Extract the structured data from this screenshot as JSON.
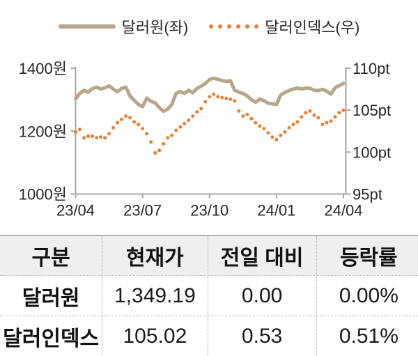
{
  "legend": {
    "series1_label": "달러원(좌)",
    "series2_label": "달러인덱스(우)"
  },
  "colors": {
    "usd_line": "#b5a78b",
    "dxy_dots": "#ed7d31",
    "axis": "#a6a6a6",
    "axis_text": "#262626",
    "header_bg": "#f0efed",
    "divider": "#b3ada3"
  },
  "chart_data": {
    "type": "line",
    "title": "",
    "legend_position": "top",
    "grid": false,
    "x_tick_labels": [
      "23/04",
      "23/07",
      "23/10",
      "24/01",
      "24/04"
    ],
    "left_axis": {
      "unit": "원",
      "tick_labels": [
        "1400원",
        "1200원",
        "1000원"
      ],
      "tick_values": [
        1400,
        1200,
        1000
      ],
      "ylim": [
        1000,
        1400
      ]
    },
    "right_axis": {
      "unit": "pt",
      "tick_labels": [
        "110pt",
        "105pt",
        "100pt",
        "95pt"
      ],
      "tick_values": [
        110,
        105,
        100,
        95
      ],
      "ylim": [
        95,
        110
      ]
    },
    "series": [
      {
        "name": "달러원(좌)",
        "axis": "left",
        "style": "solid",
        "color": "#b5a78b",
        "values": [
          1303,
          1320,
          1330,
          1324,
          1335,
          1340,
          1334,
          1338,
          1344,
          1334,
          1325,
          1336,
          1340,
          1312,
          1298,
          1285,
          1278,
          1305,
          1295,
          1290,
          1275,
          1263,
          1270,
          1285,
          1320,
          1326,
          1320,
          1330,
          1322,
          1336,
          1343,
          1352,
          1364,
          1368,
          1365,
          1361,
          1358,
          1360,
          1330,
          1324,
          1320,
          1312,
          1300,
          1292,
          1302,
          1297,
          1289,
          1287,
          1285,
          1315,
          1323,
          1329,
          1334,
          1337,
          1334,
          1337,
          1336,
          1330,
          1329,
          1333,
          1327,
          1318,
          1338,
          1345,
          1352
        ]
      },
      {
        "name": "달러인덱스(우)",
        "axis": "right",
        "style": "dotted",
        "color": "#ed7d31",
        "values": [
          102.4,
          102.7,
          101.7,
          101.9,
          101.9,
          101.7,
          101.8,
          101.7,
          102.2,
          102.9,
          103.5,
          103.9,
          104.3,
          104.1,
          103.6,
          103.3,
          102.8,
          102.2,
          101.2,
          99.9,
          100.2,
          101.0,
          101.7,
          102.0,
          102.6,
          103.0,
          103.4,
          103.8,
          104.3,
          104.8,
          105.2,
          106.0,
          106.6,
          106.9,
          106.6,
          106.5,
          106.4,
          106.3,
          106.1,
          104.9,
          104.3,
          104.5,
          104.0,
          103.5,
          103.1,
          102.8,
          102.3,
          101.8,
          101.5,
          102.0,
          102.4,
          102.9,
          103.3,
          103.6,
          104.2,
          104.7,
          104.9,
          104.4,
          104.1,
          103.3,
          103.5,
          103.7,
          104.2,
          104.7,
          105.0
        ]
      }
    ]
  },
  "table": {
    "headers": [
      "구분",
      "현재가",
      "전일 대비",
      "등락률"
    ],
    "rows": [
      {
        "name": "달러원",
        "price": "1,349.19",
        "change": "0.00",
        "change_pct": "0.00%"
      },
      {
        "name": "달러인덱스",
        "price": "105.02",
        "change": "0.53",
        "change_pct": "0.51%"
      }
    ]
  }
}
